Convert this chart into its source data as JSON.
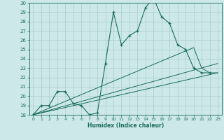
{
  "xlabel": "Humidex (Indice chaleur)",
  "ylabel": "",
  "xlim": [
    -0.5,
    23.5
  ],
  "ylim": [
    18,
    30
  ],
  "xticks": [
    0,
    1,
    2,
    3,
    4,
    5,
    6,
    7,
    8,
    9,
    10,
    11,
    12,
    13,
    14,
    15,
    16,
    17,
    18,
    19,
    20,
    21,
    22,
    23
  ],
  "yticks": [
    18,
    19,
    20,
    21,
    22,
    23,
    24,
    25,
    26,
    27,
    28,
    29,
    30
  ],
  "bg_color": "#cce8e8",
  "grid_color": "#aacccc",
  "line_color": "#1a6b5a",
  "jagged_x": [
    0,
    1,
    2,
    3,
    4,
    5,
    6,
    7,
    8,
    9,
    10,
    11,
    12,
    13,
    14,
    15,
    16,
    17,
    18,
    19,
    20,
    21,
    22
  ],
  "jagged_y": [
    18,
    19,
    19,
    20.5,
    20.5,
    19.2,
    19.0,
    18.0,
    18.2,
    23.5,
    29.0,
    25.5,
    26.5,
    27.0,
    29.5,
    30.5,
    28.5,
    27.8,
    25.5,
    25.0,
    23.0,
    22.5,
    22.5
  ],
  "line1_pts": [
    [
      0,
      18
    ],
    [
      23,
      22.5
    ]
  ],
  "line2_pts": [
    [
      0,
      18
    ],
    [
      23,
      23.5
    ]
  ],
  "line3_pts": [
    [
      0,
      18
    ],
    [
      20,
      25.2
    ],
    [
      21,
      23.0
    ],
    [
      22,
      22.5
    ],
    [
      23,
      22.5
    ]
  ]
}
